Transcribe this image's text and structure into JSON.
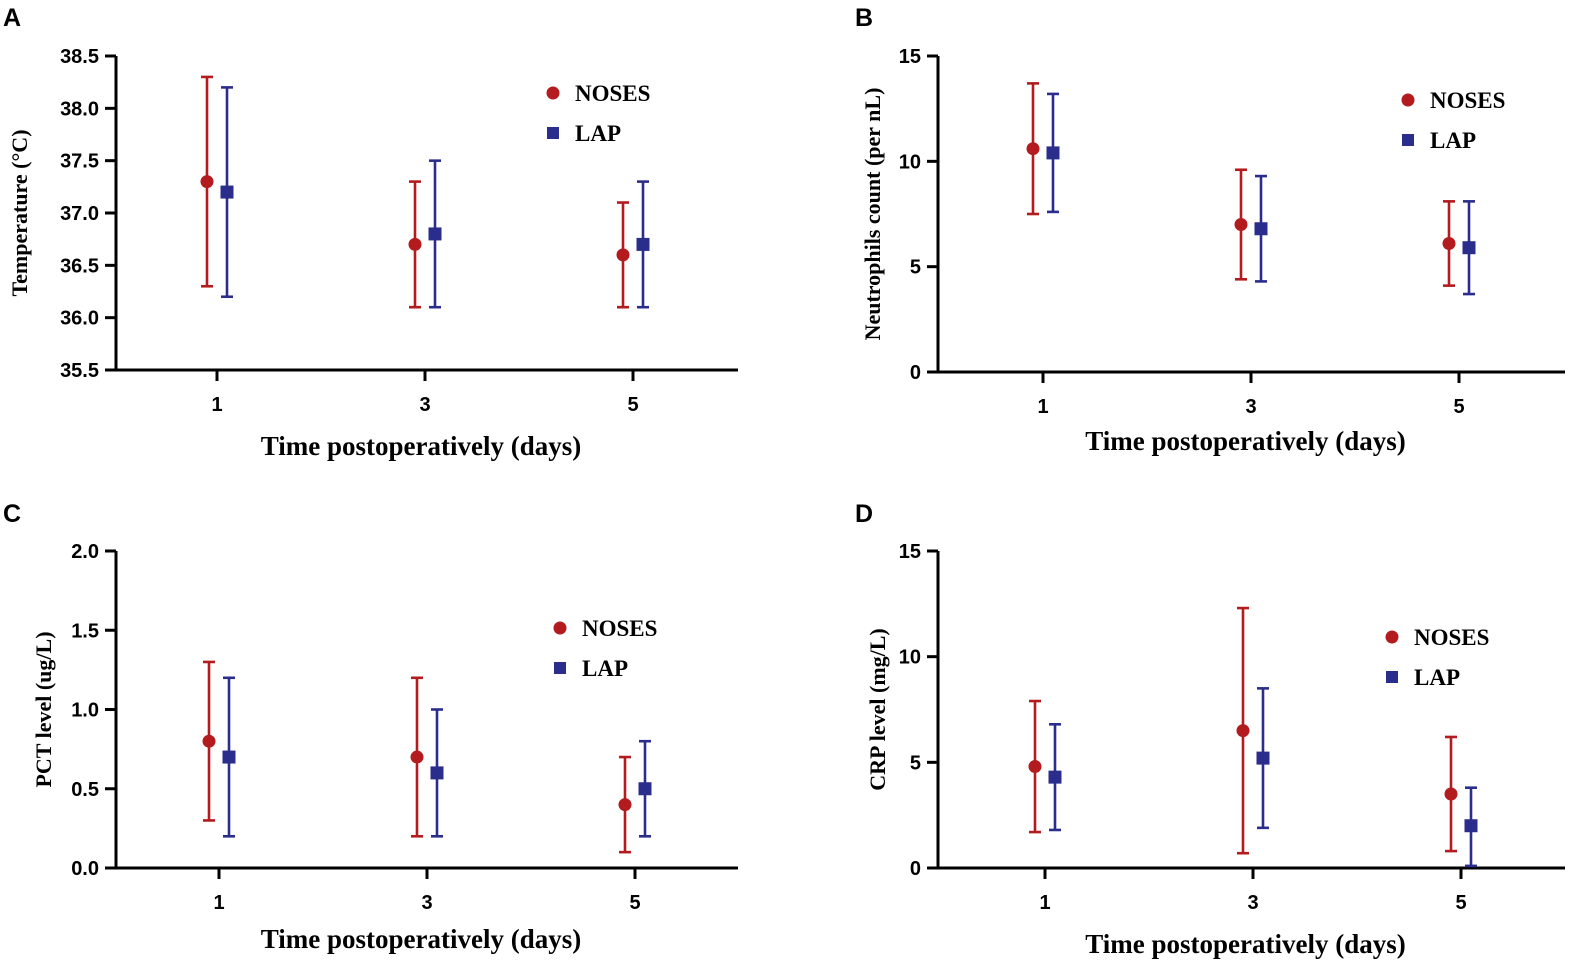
{
  "colors": {
    "noses": "#b31b1e",
    "lap": "#2a2d8c",
    "axis": "#000000"
  },
  "chart_data": [
    {
      "panel": "A",
      "type": "scatter",
      "categories": [
        "1",
        "3",
        "5"
      ],
      "ylabel": "Temperature (°C)",
      "xlabel": "Time postoperatively (days)",
      "ylim": [
        35.5,
        38.5
      ],
      "yticks": [
        "35.5",
        "36.0",
        "36.5",
        "37.0",
        "37.5",
        "38.0",
        "38.5"
      ],
      "legend": [
        "NOSES",
        "LAP"
      ],
      "series": [
        {
          "name": "NOSES",
          "marker": "circle",
          "values": [
            37.3,
            36.7,
            36.6
          ],
          "lower": [
            36.3,
            36.1,
            36.1
          ],
          "upper": [
            38.3,
            37.3,
            37.1
          ]
        },
        {
          "name": "LAP",
          "marker": "square",
          "values": [
            37.2,
            36.8,
            36.7
          ],
          "lower": [
            36.2,
            36.1,
            36.1
          ],
          "upper": [
            38.2,
            37.5,
            37.3
          ]
        }
      ]
    },
    {
      "panel": "B",
      "type": "scatter",
      "categories": [
        "1",
        "3",
        "5"
      ],
      "ylabel": "Neutrophils count (per nL)",
      "xlabel": "Time postoperatively (days)",
      "ylim": [
        0,
        15
      ],
      "yticks": [
        "0",
        "5",
        "10",
        "15"
      ],
      "legend": [
        "NOSES",
        "LAP"
      ],
      "series": [
        {
          "name": "NOSES",
          "marker": "circle",
          "values": [
            10.6,
            7.0,
            6.1
          ],
          "lower": [
            7.5,
            4.4,
            4.1
          ],
          "upper": [
            13.7,
            9.6,
            8.1
          ]
        },
        {
          "name": "LAP",
          "marker": "square",
          "values": [
            10.4,
            6.8,
            5.9
          ],
          "lower": [
            7.6,
            4.3,
            3.7
          ],
          "upper": [
            13.2,
            9.3,
            8.1
          ]
        }
      ]
    },
    {
      "panel": "C",
      "type": "scatter",
      "categories": [
        "1",
        "3",
        "5"
      ],
      "ylabel": "PCT level (ug/L)",
      "xlabel": "Time postoperatively (days)",
      "ylim": [
        0,
        2.0
      ],
      "yticks": [
        "0.0",
        "0.5",
        "1.0",
        "1.5",
        "2.0"
      ],
      "legend": [
        "NOSES",
        "LAP"
      ],
      "series": [
        {
          "name": "NOSES",
          "marker": "circle",
          "values": [
            0.8,
            0.7,
            0.4
          ],
          "lower": [
            0.3,
            0.2,
            0.1
          ],
          "upper": [
            1.3,
            1.2,
            0.7
          ]
        },
        {
          "name": "LAP",
          "marker": "square",
          "values": [
            0.7,
            0.6,
            0.5
          ],
          "lower": [
            0.2,
            0.2,
            0.2
          ],
          "upper": [
            1.2,
            1.0,
            0.8
          ]
        }
      ]
    },
    {
      "panel": "D",
      "type": "scatter",
      "categories": [
        "1",
        "3",
        "5"
      ],
      "ylabel": "CRP level (mg/L)",
      "xlabel": "Time postoperatively (days)",
      "ylim": [
        0,
        15
      ],
      "yticks": [
        "0",
        "5",
        "10",
        "15"
      ],
      "legend": [
        "NOSES",
        "LAP"
      ],
      "series": [
        {
          "name": "NOSES",
          "marker": "circle",
          "values": [
            4.8,
            6.5,
            3.5
          ],
          "lower": [
            1.7,
            0.7,
            0.8
          ],
          "upper": [
            7.9,
            12.3,
            6.2
          ]
        },
        {
          "name": "LAP",
          "marker": "square",
          "values": [
            4.3,
            5.2,
            2.0
          ],
          "lower": [
            1.8,
            1.9,
            0.1
          ],
          "upper": [
            6.8,
            8.5,
            3.8
          ]
        }
      ]
    }
  ]
}
